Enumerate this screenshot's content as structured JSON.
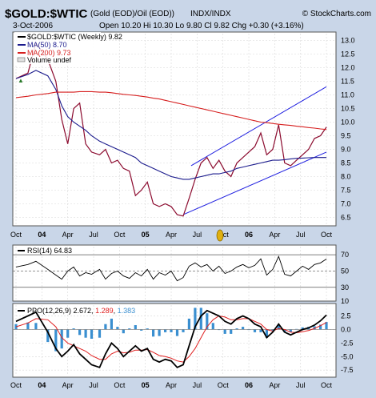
{
  "header": {
    "symbol": "$GOLD:$WTIC",
    "description": "(Gold (EOD)/Oil (EOD))",
    "index": "INDX/INDX",
    "brand": "© StockCharts.com",
    "date": "3-Oct-2006",
    "quote": "Open 10.20  Hi 10.30  Lo 9.80  Cl 9.82  Chg +0.30 (+3.16%)",
    "up_arrow": "▲"
  },
  "legend": {
    "main": "$GOLD:$WTIC (Weekly) 9.82",
    "ma50": "MA(50) 8.70",
    "ma200": "MA(200) 9.73",
    "volume": "Volume undef"
  },
  "colors": {
    "price": "#8b0a2e",
    "ma50": "#1a1a8c",
    "ma200": "#d61f1f",
    "channel": "#2020e0",
    "rsi": "#000000",
    "ppo": "#000000",
    "signal": "#e02020",
    "histogram": "#3a8fd0",
    "frame_bg": "#c9d6e8",
    "panel_bg": "#ffffff"
  },
  "x_axis": {
    "labels": [
      "Oct",
      "04",
      "Apr",
      "Jul",
      "Oct",
      "05",
      "Apr",
      "Jul",
      "Oct",
      "06",
      "Apr",
      "Jul",
      "Oct"
    ],
    "bold": [
      "04",
      "05",
      "06"
    ]
  },
  "chart_data": [
    {
      "type": "line",
      "title": "$GOLD:$WTIC (Weekly)",
      "ylim": [
        6.25,
        13.25
      ],
      "y_ticks": [
        6.5,
        7.0,
        7.5,
        8.0,
        8.5,
        9.0,
        9.5,
        10.0,
        10.5,
        11.0,
        11.5,
        12.0,
        12.5,
        13.0
      ],
      "x": [
        0,
        6,
        10,
        16,
        20,
        23,
        26,
        29,
        32,
        35,
        38,
        42,
        45,
        48,
        51,
        54,
        57,
        60,
        63,
        66,
        69,
        72,
        75,
        78,
        81,
        84,
        87,
        90,
        93,
        96,
        99,
        102,
        105,
        108,
        111,
        114,
        117,
        120,
        123,
        126,
        129,
        132,
        135,
        138,
        141,
        144,
        147,
        150,
        153,
        156
      ],
      "series": [
        {
          "name": "$GOLD:$WTIC",
          "values": [
            11.6,
            11.8,
            12.9,
            12.3,
            11.5,
            10.1,
            9.2,
            10.5,
            10.7,
            9.2,
            8.9,
            8.8,
            9.0,
            8.5,
            8.6,
            8.3,
            8.2,
            7.3,
            7.5,
            7.8,
            7.0,
            6.9,
            7.0,
            6.9,
            6.6,
            6.55,
            7.2,
            7.9,
            8.5,
            8.7,
            8.3,
            8.6,
            8.2,
            8.0,
            8.5,
            8.7,
            8.9,
            9.1,
            9.6,
            8.8,
            9.0,
            9.9,
            8.5,
            8.4,
            8.6,
            8.8,
            9.0,
            9.4,
            9.5,
            9.82
          ]
        },
        {
          "name": "MA(50)",
          "values": [
            11.6,
            11.75,
            11.9,
            11.7,
            11.2,
            10.6,
            10.2,
            10.0,
            9.85,
            9.7,
            9.5,
            9.3,
            9.2,
            9.1,
            9.0,
            8.9,
            8.8,
            8.7,
            8.5,
            8.4,
            8.3,
            8.2,
            8.1,
            8.0,
            7.95,
            7.9,
            7.9,
            7.95,
            8.0,
            8.05,
            8.1,
            8.1,
            8.15,
            8.2,
            8.3,
            8.35,
            8.4,
            8.45,
            8.5,
            8.55,
            8.6,
            8.6,
            8.62,
            8.65,
            8.67,
            8.68,
            8.69,
            8.7,
            8.7,
            8.7
          ]
        },
        {
          "name": "MA(200)",
          "values": [
            10.9,
            10.95,
            11.0,
            11.05,
            11.1,
            11.1,
            11.1,
            11.1,
            11.12,
            11.12,
            11.12,
            11.1,
            11.1,
            11.08,
            11.05,
            11.02,
            11.0,
            10.98,
            10.95,
            10.92,
            10.88,
            10.85,
            10.8,
            10.75,
            10.7,
            10.65,
            10.6,
            10.55,
            10.5,
            10.45,
            10.4,
            10.35,
            10.3,
            10.25,
            10.2,
            10.15,
            10.1,
            10.05,
            10.0,
            9.98,
            9.95,
            9.92,
            9.9,
            9.88,
            9.85,
            9.83,
            9.8,
            9.78,
            9.75,
            9.73
          ]
        }
      ],
      "trendlines": [
        {
          "from": [
            84,
            6.6
          ],
          "to": [
            156,
            8.9
          ]
        },
        {
          "from": [
            88,
            8.4
          ],
          "to": [
            156,
            11.3
          ]
        }
      ]
    },
    {
      "type": "line",
      "title": "RSI(14) 64.83",
      "ylim": [
        15,
        80
      ],
      "y_ticks": [
        10,
        30,
        50,
        70
      ],
      "levels": [
        70,
        50,
        30
      ],
      "x": [
        0,
        6,
        10,
        16,
        20,
        23,
        26,
        29,
        32,
        35,
        38,
        42,
        45,
        48,
        51,
        54,
        57,
        60,
        63,
        66,
        69,
        72,
        75,
        78,
        81,
        84,
        87,
        90,
        93,
        96,
        99,
        102,
        105,
        108,
        111,
        114,
        117,
        120,
        123,
        126,
        129,
        132,
        135,
        138,
        141,
        144,
        147,
        150,
        153,
        156
      ],
      "series": [
        {
          "name": "RSI(14)",
          "values": [
            55,
            58,
            62,
            52,
            45,
            40,
            50,
            55,
            44,
            48,
            46,
            52,
            40,
            47,
            50,
            44,
            41,
            48,
            44,
            52,
            40,
            48,
            45,
            50,
            38,
            42,
            56,
            60,
            55,
            58,
            50,
            56,
            47,
            50,
            55,
            58,
            54,
            57,
            65,
            45,
            52,
            68,
            46,
            44,
            50,
            56,
            52,
            58,
            60,
            64.83
          ]
        }
      ]
    },
    {
      "type": "line",
      "title": "PPO(12,26,9) 2.672, 1.289, 1.383",
      "ylim": [
        -8.5,
        4.5
      ],
      "y_ticks": [
        -7.5,
        -5.0,
        -2.5,
        0.0,
        2.5
      ],
      "x": [
        0,
        6,
        10,
        16,
        20,
        23,
        26,
        29,
        32,
        35,
        38,
        42,
        45,
        48,
        51,
        54,
        57,
        60,
        63,
        66,
        69,
        72,
        75,
        78,
        81,
        84,
        87,
        90,
        93,
        96,
        99,
        102,
        105,
        108,
        111,
        114,
        117,
        120,
        123,
        126,
        129,
        132,
        135,
        138,
        141,
        144,
        147,
        150,
        153,
        156
      ],
      "series": [
        {
          "name": "PPO(12,26,9)",
          "values": [
            1.5,
            2.5,
            3.2,
            -0.5,
            -3.5,
            -5.0,
            -4.0,
            -2.8,
            -4.5,
            -5.5,
            -6.5,
            -7.0,
            -4.5,
            -2.5,
            -3.5,
            -5.0,
            -4.0,
            -3.0,
            -4.0,
            -3.5,
            -5.5,
            -6.0,
            -5.5,
            -5.8,
            -7.0,
            -6.5,
            -3.0,
            0.5,
            2.5,
            3.5,
            3.0,
            2.5,
            1.5,
            1.0,
            2.0,
            2.5,
            2.0,
            1.0,
            0.5,
            -1.5,
            -0.5,
            1.0,
            -0.5,
            -1.0,
            -0.5,
            0.0,
            0.3,
            0.8,
            1.6,
            2.672
          ]
        },
        {
          "name": "Signal",
          "values": [
            0.5,
            1.2,
            2.0,
            1.8,
            0.5,
            -1.5,
            -2.5,
            -3.0,
            -3.5,
            -4.0,
            -4.8,
            -5.5,
            -5.5,
            -4.5,
            -4.0,
            -4.3,
            -4.2,
            -3.8,
            -3.8,
            -3.7,
            -4.2,
            -4.8,
            -5.0,
            -5.3,
            -5.8,
            -6.0,
            -5.0,
            -3.5,
            -1.5,
            0.5,
            1.8,
            2.5,
            2.3,
            1.8,
            1.8,
            2.0,
            2.0,
            1.5,
            1.0,
            0.0,
            -0.3,
            0.2,
            0.0,
            -0.5,
            -0.6,
            -0.4,
            -0.2,
            0.2,
            0.7,
            1.289
          ]
        },
        {
          "name": "Histogram",
          "values": [
            1.0,
            1.3,
            1.2,
            -2.3,
            -4.0,
            -3.5,
            -1.5,
            0.2,
            -1.0,
            -1.5,
            -1.7,
            -1.5,
            1.0,
            2.0,
            0.5,
            -0.7,
            0.2,
            0.8,
            -0.2,
            0.2,
            -1.3,
            -1.2,
            -0.5,
            -0.5,
            -1.2,
            -0.5,
            2.0,
            4.0,
            4.0,
            3.0,
            1.2,
            0.0,
            -0.8,
            -0.8,
            0.2,
            0.5,
            0.0,
            -0.5,
            -0.5,
            -1.5,
            -0.2,
            0.8,
            -0.5,
            -0.5,
            0.1,
            0.4,
            0.5,
            0.6,
            0.9,
            1.383
          ]
        }
      ]
    }
  ]
}
